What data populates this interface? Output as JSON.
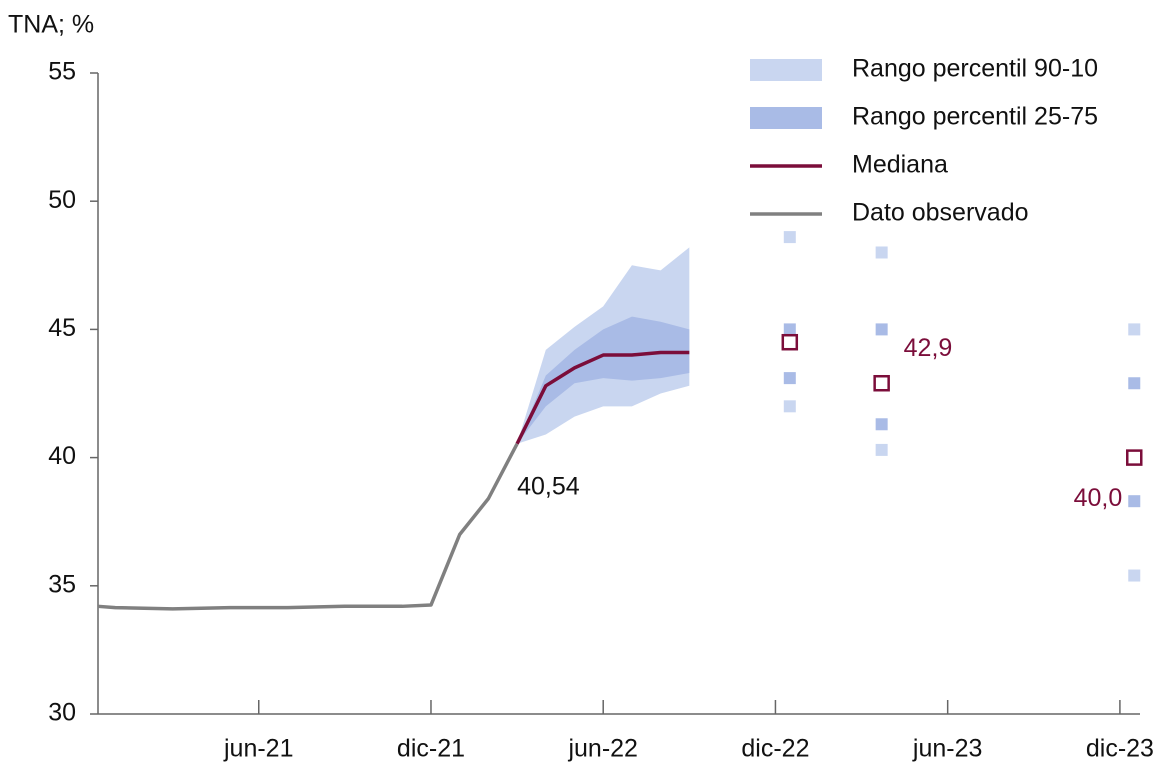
{
  "chart_data": {
    "type": "line",
    "y_label": "TNA; %",
    "ylim": [
      30,
      55
    ],
    "yticks": [
      30,
      35,
      40,
      45,
      50,
      55
    ],
    "xlim": [
      -0.6,
      35.7
    ],
    "xticks": [
      {
        "value": 5,
        "label": "jun-21"
      },
      {
        "value": 11,
        "label": "dic-21"
      },
      {
        "value": 17,
        "label": "jun-22"
      },
      {
        "value": 23,
        "label": "dic-22"
      },
      {
        "value": 29,
        "label": "jun-23"
      },
      {
        "value": 35,
        "label": "dic-23"
      }
    ],
    "series": [
      {
        "name": "Rango percentil 90-10",
        "kind": "band",
        "color": "#c9d6f0",
        "x": [
          14,
          15,
          16,
          17,
          18,
          19,
          20
        ],
        "low": [
          40.54,
          40.9,
          41.6,
          42.0,
          42.0,
          42.5,
          42.8
        ],
        "high": [
          40.54,
          44.2,
          45.1,
          45.9,
          47.5,
          47.3,
          48.2
        ],
        "point_x": [
          23.5,
          26.7,
          35.5
        ],
        "point_low": [
          42.0,
          40.3,
          35.4
        ],
        "point_high": [
          48.6,
          48.0,
          45.0
        ]
      },
      {
        "name": "Rango percentil 25-75",
        "kind": "band",
        "color": "#a9bbe6",
        "x": [
          14,
          15,
          16,
          17,
          18,
          19,
          20
        ],
        "low": [
          40.54,
          42.0,
          42.9,
          43.1,
          43.0,
          43.1,
          43.3
        ],
        "high": [
          40.54,
          43.2,
          44.2,
          45.0,
          45.5,
          45.3,
          45.0
        ],
        "point_x": [
          23.5,
          26.7,
          35.5
        ],
        "point_low": [
          43.1,
          41.3,
          38.3
        ],
        "point_high": [
          45.0,
          45.0,
          42.9
        ]
      },
      {
        "name": "Mediana",
        "kind": "line",
        "color": "#7b0d3a",
        "x": [
          14,
          15,
          16,
          17,
          18,
          19,
          20
        ],
        "values": [
          40.54,
          42.8,
          43.5,
          44.0,
          44.0,
          44.1,
          44.1
        ],
        "point_x": [
          23.5,
          26.7,
          35.5
        ],
        "point_values": [
          44.5,
          42.9,
          40.0
        ],
        "point_value_labels": [
          null,
          "42,9",
          "40,0"
        ]
      },
      {
        "name": "Dato observado",
        "kind": "line",
        "color": "#808080",
        "x": [
          -0.6,
          0,
          2,
          4,
          6,
          8,
          9,
          10,
          11,
          12,
          13,
          14
        ],
        "values": [
          34.2,
          34.15,
          34.1,
          34.15,
          34.15,
          34.2,
          34.2,
          34.2,
          34.25,
          37.0,
          38.4,
          40.54
        ],
        "value_labels": [
          null,
          null,
          null,
          null,
          null,
          null,
          null,
          null,
          null,
          null,
          null,
          "40,54"
        ]
      }
    ]
  }
}
